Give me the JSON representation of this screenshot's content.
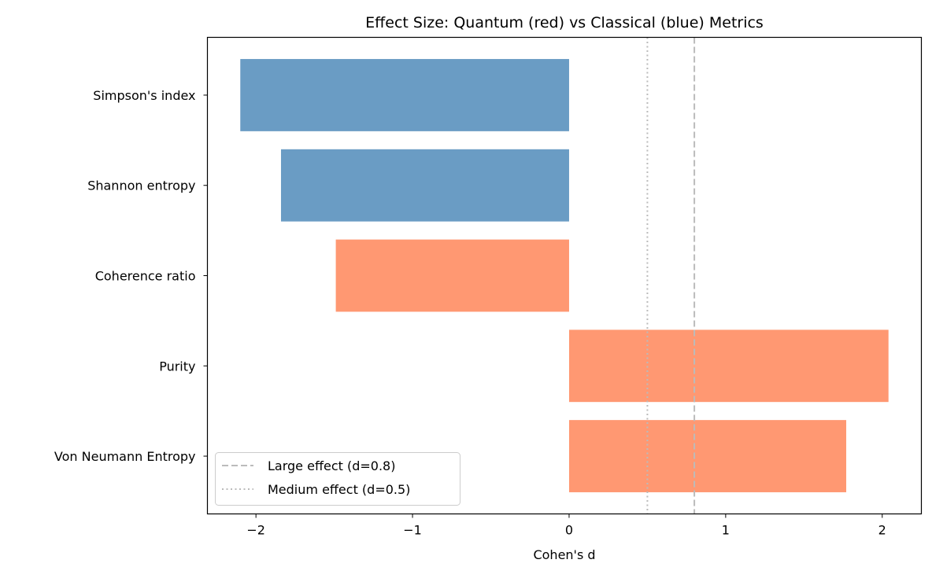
{
  "chart_data": {
    "type": "bar",
    "orientation": "horizontal",
    "title": "Effect Size: Quantum (red) vs Classical (blue) Metrics",
    "xlabel": "Cohen's d",
    "ylabel": "",
    "xlim": [
      -2.31,
      2.25
    ],
    "xticks": [
      -2,
      -1,
      0,
      1,
      2
    ],
    "xtick_labels": [
      "−2",
      "−1",
      "0",
      "1",
      "2"
    ],
    "categories": [
      "Von Neumann Entropy",
      "Purity",
      "Coherence ratio",
      "Shannon entropy",
      "Simpson's index"
    ],
    "values": [
      1.77,
      2.04,
      -1.49,
      -1.84,
      -2.1
    ],
    "bar_colors": [
      "#ff9872",
      "#ff9872",
      "#ff9872",
      "#6a9cc4",
      "#6a9cc4"
    ],
    "grid": false,
    "reference_lines": [
      {
        "label": "Large effect (d=0.8)",
        "x": 0.8,
        "style": "dashed",
        "color": "#bbbbbb"
      },
      {
        "label": "Medium effect (d=0.5)",
        "x": 0.5,
        "style": "dotted",
        "color": "#bbbbbb"
      }
    ],
    "legend_position": "lower-left"
  }
}
